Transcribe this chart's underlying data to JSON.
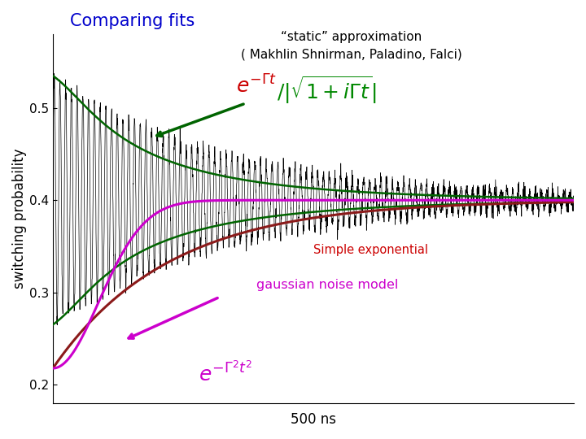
{
  "title": "Comparing fits",
  "title_color": "#0000cc",
  "title_fontsize": 15,
  "subtitle1": "“static” approximation",
  "subtitle2": "( Makhlin Shnirman, Paladino, Falci)",
  "subtitle_fontsize": 11,
  "xlabel": "500 ns",
  "ylabel": "switching probability",
  "ylabel_fontsize": 12,
  "xlim": [
    0,
    500
  ],
  "ylim": [
    0.18,
    0.58
  ],
  "yticks": [
    0.2,
    0.3,
    0.4,
    0.5
  ],
  "background_color": "#ffffff",
  "data_color": "#000000",
  "green_color": "#006400",
  "red_color": "#8b1a1a",
  "magenta_color": "#cc00cc",
  "formula_red_color": "#cc0000",
  "formula_green_color": "#008800",
  "formula_magenta_color": "#cc00cc",
  "label_simple_exp": "Simple exponential",
  "label_simple_exp_color": "#cc0000",
  "label_gaussian": "gaussian noise model",
  "label_gaussian_color": "#cc00cc",
  "baseline": 0.4,
  "amplitude": 0.135,
  "osc_period": 5.5,
  "env_decay": 0.006,
  "env_omega": 0.022,
  "simple_exp_rate": 0.009,
  "gaussian_rate": 0.018,
  "t_max": 500,
  "n_osc": 3000,
  "n_smooth": 2000
}
